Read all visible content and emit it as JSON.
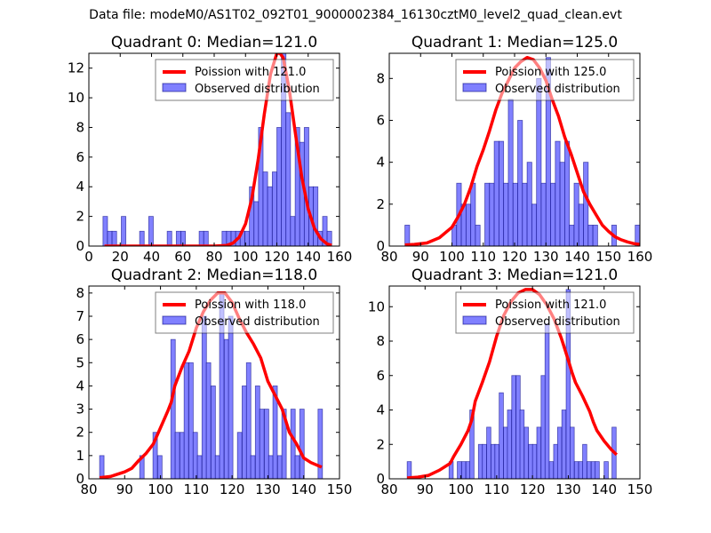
{
  "suptitle": "Data file: modeM0/AS1T02_092T01_9000002384_16130cztM0_level2_quad_clean.evt",
  "colors": {
    "curve": "#ff0000",
    "bar_fill": "#8080ff",
    "bar_edge": "#000080"
  },
  "chart_data": [
    {
      "type": "bar",
      "title": "Quadrant 0: Median=121.0",
      "xlabel": "",
      "ylabel": "",
      "xlim": [
        0,
        160
      ],
      "ylim": [
        0,
        13
      ],
      "xticks": [
        0,
        20,
        40,
        60,
        80,
        100,
        120,
        140,
        160
      ],
      "yticks": [
        0,
        2,
        4,
        6,
        8,
        10,
        12
      ],
      "grid": false,
      "legend_loc": "top-right",
      "legend": [
        "Poission with 121.0",
        "Observed distribution"
      ],
      "bin_width": 2.92,
      "bins": [
        [
          9,
          2
        ],
        [
          11.9,
          1
        ],
        [
          14.8,
          1
        ],
        [
          20.7,
          2
        ],
        [
          32.4,
          1
        ],
        [
          38.2,
          2
        ],
        [
          50,
          1
        ],
        [
          55.8,
          1
        ],
        [
          58.7,
          1
        ],
        [
          70.4,
          1
        ],
        [
          73.3,
          1
        ],
        [
          85,
          1
        ],
        [
          87.9,
          1
        ],
        [
          90.8,
          1
        ],
        [
          93.7,
          1
        ],
        [
          96.6,
          1
        ],
        [
          99.6,
          1
        ],
        [
          102.5,
          4
        ],
        [
          105.4,
          3
        ],
        [
          108.3,
          8
        ],
        [
          111.2,
          5
        ],
        [
          114.1,
          4
        ],
        [
          117.1,
          5
        ],
        [
          120,
          8
        ],
        [
          122.9,
          13
        ],
        [
          125.8,
          9
        ],
        [
          128.7,
          2
        ],
        [
          131.7,
          8
        ],
        [
          134.6,
          7
        ],
        [
          137.5,
          8
        ],
        [
          140.4,
          4
        ],
        [
          143.3,
          4
        ],
        [
          146.2,
          1
        ],
        [
          149.2,
          2
        ],
        [
          152.1,
          1
        ]
      ],
      "curve": {
        "name": "Poission with 121.0",
        "x": [
          10,
          80,
          88,
          92,
          96,
          100,
          104,
          108,
          112,
          116,
          120,
          122,
          124,
          128,
          132,
          136,
          140,
          144,
          148,
          152,
          155
        ],
        "y": [
          0,
          0,
          0.05,
          0.2,
          0.6,
          1.5,
          3.2,
          5.8,
          8.9,
          11.6,
          13,
          13,
          12.7,
          10.5,
          7.5,
          4.6,
          2.5,
          1.2,
          0.5,
          0.15,
          0.05
        ]
      }
    },
    {
      "type": "bar",
      "title": "Quadrant 1: Median=125.0",
      "xlabel": "",
      "ylabel": "",
      "xlim": [
        80,
        160
      ],
      "ylim": [
        0,
        9.2
      ],
      "xticks": [
        80,
        90,
        100,
        110,
        120,
        130,
        140,
        150,
        160
      ],
      "yticks": [
        0,
        2,
        4,
        6,
        8
      ],
      "grid": false,
      "legend_loc": "top-right",
      "legend": [
        "Poission with 125.0",
        "Observed distribution"
      ],
      "bin_width": 1.5,
      "bins": [
        [
          85,
          1
        ],
        [
          100,
          1
        ],
        [
          101.5,
          3
        ],
        [
          103,
          2
        ],
        [
          104.5,
          2
        ],
        [
          106,
          3
        ],
        [
          107.5,
          1
        ],
        [
          110.5,
          3
        ],
        [
          112,
          3
        ],
        [
          113.5,
          5
        ],
        [
          115,
          5
        ],
        [
          116.5,
          3
        ],
        [
          118,
          7
        ],
        [
          119.5,
          3
        ],
        [
          121,
          6
        ],
        [
          122.5,
          3
        ],
        [
          124,
          4
        ],
        [
          125.5,
          2
        ],
        [
          127,
          8
        ],
        [
          128.5,
          3
        ],
        [
          130,
          9
        ],
        [
          131.5,
          3
        ],
        [
          133,
          5
        ],
        [
          134.5,
          4
        ],
        [
          136,
          5
        ],
        [
          137.5,
          1
        ],
        [
          139,
          3
        ],
        [
          140.5,
          2
        ],
        [
          142,
          4
        ],
        [
          143.5,
          1
        ],
        [
          145,
          1
        ],
        [
          151,
          1
        ],
        [
          158.5,
          1
        ]
      ],
      "curve": {
        "name": "Poission with 125.0",
        "x": [
          85,
          88,
          92,
          96,
          100,
          102,
          104,
          106,
          108,
          110,
          112,
          114,
          116,
          118,
          120,
          122,
          124,
          126,
          128,
          130,
          132,
          134,
          136,
          138,
          140,
          142,
          144,
          146,
          148,
          150,
          152,
          154,
          156,
          158,
          160
        ],
        "y": [
          0.05,
          0.08,
          0.15,
          0.4,
          0.9,
          1.4,
          2.0,
          2.8,
          3.8,
          4.6,
          5.5,
          6.5,
          7.3,
          7.9,
          8.5,
          8.8,
          9.0,
          8.9,
          8.5,
          7.9,
          7.0,
          6.2,
          5.2,
          4.4,
          3.5,
          2.6,
          2.0,
          1.5,
          1.0,
          0.7,
          0.45,
          0.3,
          0.2,
          0.12,
          0.08
        ]
      }
    },
    {
      "type": "bar",
      "title": "Quadrant 2: Median=118.0",
      "xlabel": "",
      "ylabel": "",
      "xlim": [
        80,
        150
      ],
      "ylim": [
        0,
        8.3
      ],
      "xticks": [
        80,
        90,
        100,
        110,
        120,
        130,
        140,
        150
      ],
      "yticks": [
        0,
        1,
        2,
        3,
        4,
        5,
        6,
        7,
        8
      ],
      "grid": false,
      "legend_loc": "top-right",
      "legend": [
        "Poission with 118.0",
        "Observed distribution"
      ],
      "bin_width": 1.24,
      "bins": [
        [
          83,
          1
        ],
        [
          94.2,
          1
        ],
        [
          97.9,
          2
        ],
        [
          99.2,
          1
        ],
        [
          102.9,
          6
        ],
        [
          104.1,
          2
        ],
        [
          105.4,
          2
        ],
        [
          106.6,
          5
        ],
        [
          107.9,
          5
        ],
        [
          109.1,
          2
        ],
        [
          110.3,
          1
        ],
        [
          111.6,
          7
        ],
        [
          112.8,
          5
        ],
        [
          114.1,
          4
        ],
        [
          115.3,
          1
        ],
        [
          116.5,
          8
        ],
        [
          117.8,
          6
        ],
        [
          119,
          7
        ],
        [
          121.5,
          2
        ],
        [
          122.8,
          4
        ],
        [
          124,
          5
        ],
        [
          125.2,
          1
        ],
        [
          126.5,
          4
        ],
        [
          127.7,
          3
        ],
        [
          129,
          3
        ],
        [
          130.2,
          1
        ],
        [
          131.4,
          4
        ],
        [
          132.7,
          1
        ],
        [
          133.9,
          3
        ],
        [
          136.4,
          3
        ],
        [
          137.6,
          1
        ],
        [
          138.9,
          3
        ],
        [
          144,
          3
        ]
      ],
      "curve": {
        "name": "Poission with 118.0",
        "x": [
          83,
          86,
          88,
          90,
          92,
          94,
          96,
          98,
          100,
          102,
          103,
          104,
          106,
          108,
          110,
          112,
          114,
          116,
          118,
          120,
          122,
          124,
          126,
          128,
          130,
          132,
          134,
          136,
          138,
          140,
          142,
          145
        ],
        "y": [
          0.05,
          0.1,
          0.2,
          0.3,
          0.45,
          0.8,
          1.1,
          1.5,
          2.2,
          2.9,
          3.3,
          4.0,
          4.8,
          5.5,
          6.5,
          7.2,
          7.7,
          8.0,
          8.0,
          7.6,
          6.9,
          6.3,
          5.8,
          5.2,
          4.2,
          3.6,
          3.0,
          2.0,
          1.5,
          0.9,
          0.7,
          0.5
        ]
      }
    },
    {
      "type": "bar",
      "title": "Quadrant 3: Median=121.0",
      "xlabel": "",
      "ylabel": "",
      "xlim": [
        80,
        150
      ],
      "ylim": [
        0,
        11.2
      ],
      "xticks": [
        80,
        90,
        100,
        110,
        120,
        130,
        140,
        150
      ],
      "yticks": [
        0,
        2,
        4,
        6,
        8,
        10
      ],
      "grid": false,
      "legend_loc": "top-right",
      "legend": [
        "Poission with 121.0",
        "Observed distribution"
      ],
      "bin_width": 1.17,
      "bins": [
        [
          85,
          1
        ],
        [
          96.7,
          1
        ],
        [
          99,
          1
        ],
        [
          100.2,
          1
        ],
        [
          101.4,
          1
        ],
        [
          102.5,
          4
        ],
        [
          104.9,
          2
        ],
        [
          106,
          2
        ],
        [
          107.2,
          3
        ],
        [
          108.4,
          2
        ],
        [
          109.5,
          2
        ],
        [
          110.7,
          5
        ],
        [
          111.9,
          3
        ],
        [
          113,
          4
        ],
        [
          114.2,
          6
        ],
        [
          115.4,
          6
        ],
        [
          116.5,
          4
        ],
        [
          117.7,
          3
        ],
        [
          118.9,
          2
        ],
        [
          120,
          2
        ],
        [
          121.2,
          3
        ],
        [
          122.4,
          6
        ],
        [
          123.5,
          9
        ],
        [
          124.7,
          1
        ],
        [
          125.9,
          2
        ],
        [
          127,
          3
        ],
        [
          128.2,
          4
        ],
        [
          129.4,
          11
        ],
        [
          130.5,
          3
        ],
        [
          131.7,
          1
        ],
        [
          132.9,
          1
        ],
        [
          134,
          2
        ],
        [
          135.2,
          1
        ],
        [
          136.4,
          1
        ],
        [
          137.5,
          1
        ],
        [
          140,
          1
        ],
        [
          142.2,
          3
        ]
      ],
      "curve": {
        "name": "Poission with 121.0",
        "x": [
          85,
          88,
          91,
          94,
          97,
          98,
          100,
          102,
          103,
          104,
          106,
          108,
          110,
          111,
          112,
          114,
          116,
          118,
          120,
          122,
          124,
          126,
          128,
          130,
          131,
          132,
          134,
          136,
          137,
          138,
          140,
          142,
          143.5
        ],
        "y": [
          0.05,
          0.1,
          0.2,
          0.5,
          0.9,
          1.3,
          2.0,
          2.8,
          3.4,
          4.5,
          5.6,
          6.8,
          8.3,
          8.9,
          9.5,
          10.3,
          10.8,
          11.0,
          11.0,
          10.7,
          10.1,
          9.3,
          8.2,
          6.9,
          6.2,
          5.6,
          4.8,
          3.9,
          3.3,
          2.8,
          2.2,
          1.7,
          1.4
        ]
      }
    }
  ]
}
